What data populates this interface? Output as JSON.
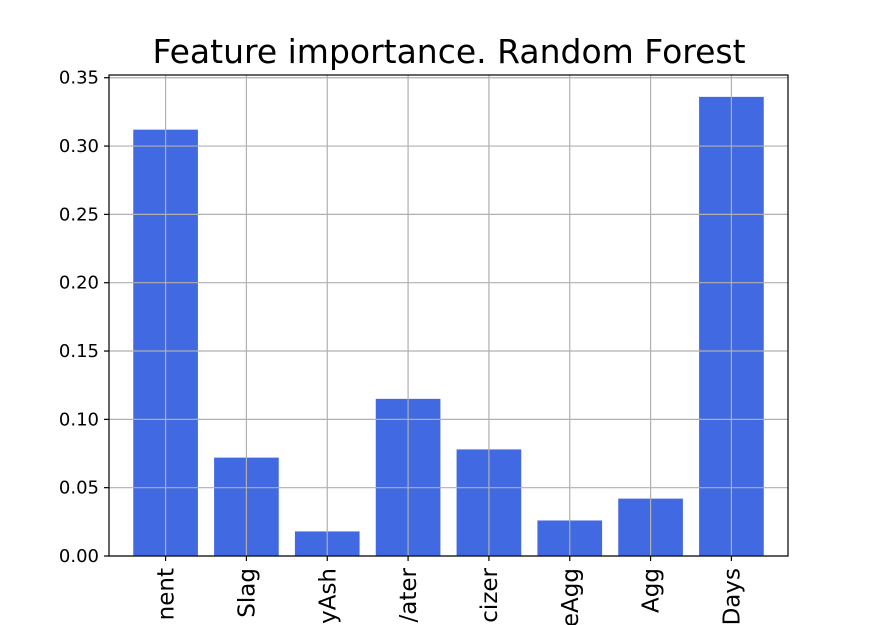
{
  "chart_data": {
    "type": "bar",
    "title": "Feature importance. Random Forest",
    "xlabel": "",
    "ylabel": "",
    "categories_visible_text": [
      "nent",
      "Slag",
      "yAsh",
      "/ater",
      "cizer",
      "eAgg",
      "Agg",
      "Days"
    ],
    "values": [
      0.312,
      0.072,
      0.018,
      0.115,
      0.078,
      0.026,
      0.042,
      0.336
    ],
    "ylim": [
      0,
      0.352
    ],
    "yticks": [
      "0.00",
      "0.05",
      "0.10",
      "0.15",
      "0.20",
      "0.25",
      "0.30",
      "0.35"
    ],
    "ytick_values": [
      0,
      0.05,
      0.1,
      0.15,
      0.2,
      0.25,
      0.3,
      0.35
    ],
    "grid": true,
    "bar_color": "#4169e1",
    "grid_color": "#b0b0b0"
  }
}
